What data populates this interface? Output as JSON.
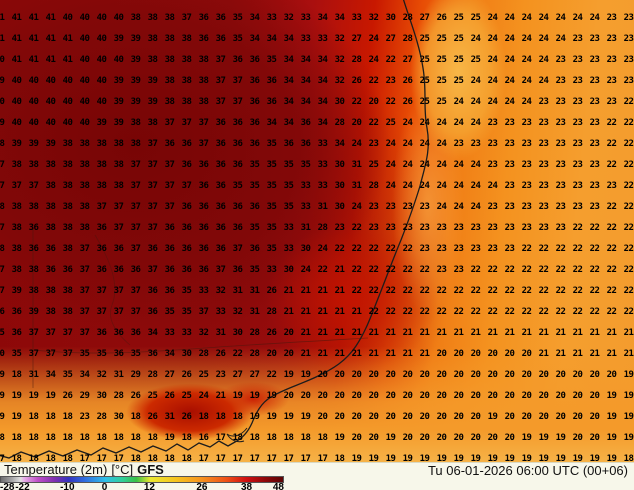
{
  "map": {
    "grid_rows": [
      "41 41 41 41 40 40 40 40 38 38 38 37 36 36 35 34 33 32 33 34 34 33 32 30 28 27 26 25 25 24 24 24 24 24 24 24 23 23",
      "41 41 41 41 41 40 40 39 39 38 38 38 36 36 35 34 34 34 33 33 32 27 24 27 28 25 25 25 24 24 24 24 24 24 23 23 23 23",
      "40 41 41 41 41 40 40 40 39 38 38 38 38 37 36 36 35 34 34 34 32 28 24 22 27 25 25 25 25 24 24 24 24 23 23 23 23 23",
      "39 40 40 40 40 40 40 39 39 39 38 38 38 37 37 36 36 34 34 34 32 26 22 23 26 25 25 25 24 24 24 24 24 23 23 23 23 23",
      "40 40 40 40 40 40 40 39 39 39 38 38 38 37 37 36 36 34 34 34 30 22 20 22 26 25 25 24 24 24 24 24 23 23 23 23 23 22",
      "39 40 40 40 40 40 39 39 38 38 37 37 37 36 36 36 34 34 36 34 28 20 22 25 24 24 24 24 24 23 23 23 23 23 23 23 22 22",
      "38 39 39 39 38 38 38 38 38 37 36 36 37 36 36 36 35 36 36 33 34 24 23 24 24 24 24 23 23 23 23 23 23 23 23 23 22 22",
      "37 38 38 38 38 38 38 38 37 37 37 36 36 36 36 35 35 35 35 33 30 31 25 24 24 24 24 24 24 23 23 23 23 23 23 23 22 22",
      "37 37 37 38 38 38 38 38 37 37 37 37 36 36 35 35 35 35 33 33 30 31 28 24 24 24 24 24 24 24 23 23 23 23 23 23 23 22",
      "38 38 38 38 38 38 37 37 37 37 37 36 36 36 36 36 35 35 33 31 30 24 23 23 23 23 24 24 24 23 23 23 23 23 23 23 22 22",
      "37 38 36 38 38 38 36 37 37 37 36 36 36 36 36 35 35 33 31 28 23 22 23 23 23 23 23 23 23 23 23 23 23 23 22 22 22 22",
      "38 38 36 36 38 37 36 36 37 36 36 36 36 36 37 36 35 33 30 24 22 22 22 22 22 23 23 23 23 23 23 22 22 22 22 22 22 22",
      "37 38 38 36 36 37 36 36 36 37 36 36 36 37 36 35 33 30 24 22 21 22 22 22 22 22 23 23 22 22 22 22 22 22 22 22 22 22",
      "37 39 38 38 38 37 37 37 37 36 36 35 33 32 31 31 26 21 21 21 21 22 22 22 22 22 22 22 22 22 22 22 22 22 22 22 22 22",
      "36 36 39 38 38 37 37 37 37 36 35 35 37 33 32 31 28 21 21 21 21 21 22 22 22 22 22 22 22 22 22 22 22 22 22 22 22 22",
      "35 36 37 37 37 37 36 36 36 34 33 33 32 31 30 28 26 20 21 21 21 21 21 21 21 21 21 21 21 21 21 21 21 21 21 21 21 21",
      "20 35 37 37 37 35 35 36 35 36 34 30 28 26 22 28 20 20 21 21 21 21 21 21 21 21 20 20 20 20 20 20 21 21 21 21 21 21",
      "19 18 31 34 35 34 32 31 29 28 27 26 25 23 27 27 22 19 19 20 20 20 20 20 20 20 20 20 20 20 20 20 20 20 20 20 20 19",
      "19 19 19 19 26 29 30 28 26 25 26 25 24 21 19 19 19 20 20 20 20 20 20 20 20 20 20 20 20 20 20 20 20 20 20 20 19 19",
      "19 19 18 18 18 23 28 30 18 26 31 26 18 18 18 19 19 19 19 20 20 20 20 20 20 20 20 20 20 19 20 20 20 20 20 20 19 19",
      "18 18 18 18 18 18 18 18 18 18 19 18 16 17 18 18 18 18 18 18 19 20 20 19 20 20 20 20 20 20 20 19 19 19 20 20 19 19",
      "17 18 18 18 18 17 17 17 18 18 18 18 17 17 17 17 17 17 17 17 18 19 19 19 19 19 19 19 19 19 19 19 19 19 19 19 19 18"
    ],
    "colors": {
      "hot_core": "#780505",
      "red_zone": "#c81800",
      "orange_zone": "#f4921f",
      "yellow_zone": "#f6b247"
    }
  },
  "legend": {
    "parameter": "Temperature (2m)",
    "unit": "[°C]",
    "model": "GFS",
    "datetime": "Tu 06-01-2026 06:00 UTC (00+06)",
    "scale": {
      "labels": [
        {
          "text": "-28",
          "pos_pct": 0
        },
        {
          "text": "-22",
          "pos_pct": 7.9
        },
        {
          "text": "-10",
          "pos_pct": 23.7
        },
        {
          "text": "0",
          "pos_pct": 36.8
        },
        {
          "text": "12",
          "pos_pct": 52.6
        },
        {
          "text": "26",
          "pos_pct": 71.1
        },
        {
          "text": "38",
          "pos_pct": 86.8
        },
        {
          "text": "48",
          "pos_pct": 100
        }
      ],
      "gradient_stops": [
        {
          "pct": 0,
          "color": "#6e6e6e"
        },
        {
          "pct": 4,
          "color": "#a8a8a8"
        },
        {
          "pct": 7,
          "color": "#e0e0e0"
        },
        {
          "pct": 8,
          "color": "#e8b4e8"
        },
        {
          "pct": 13,
          "color": "#c050c8"
        },
        {
          "pct": 19,
          "color": "#8030b0"
        },
        {
          "pct": 24,
          "color": "#3434c0"
        },
        {
          "pct": 30,
          "color": "#3070e0"
        },
        {
          "pct": 37,
          "color": "#30c0e8"
        },
        {
          "pct": 43,
          "color": "#30cf9a"
        },
        {
          "pct": 48,
          "color": "#38c046"
        },
        {
          "pct": 53,
          "color": "#ece830"
        },
        {
          "pct": 62,
          "color": "#f6c41e"
        },
        {
          "pct": 71,
          "color": "#f6941e"
        },
        {
          "pct": 80,
          "color": "#ee5016"
        },
        {
          "pct": 87,
          "color": "#d01010"
        },
        {
          "pct": 94,
          "color": "#8c0808"
        },
        {
          "pct": 100,
          "color": "#5c0404"
        }
      ]
    }
  }
}
